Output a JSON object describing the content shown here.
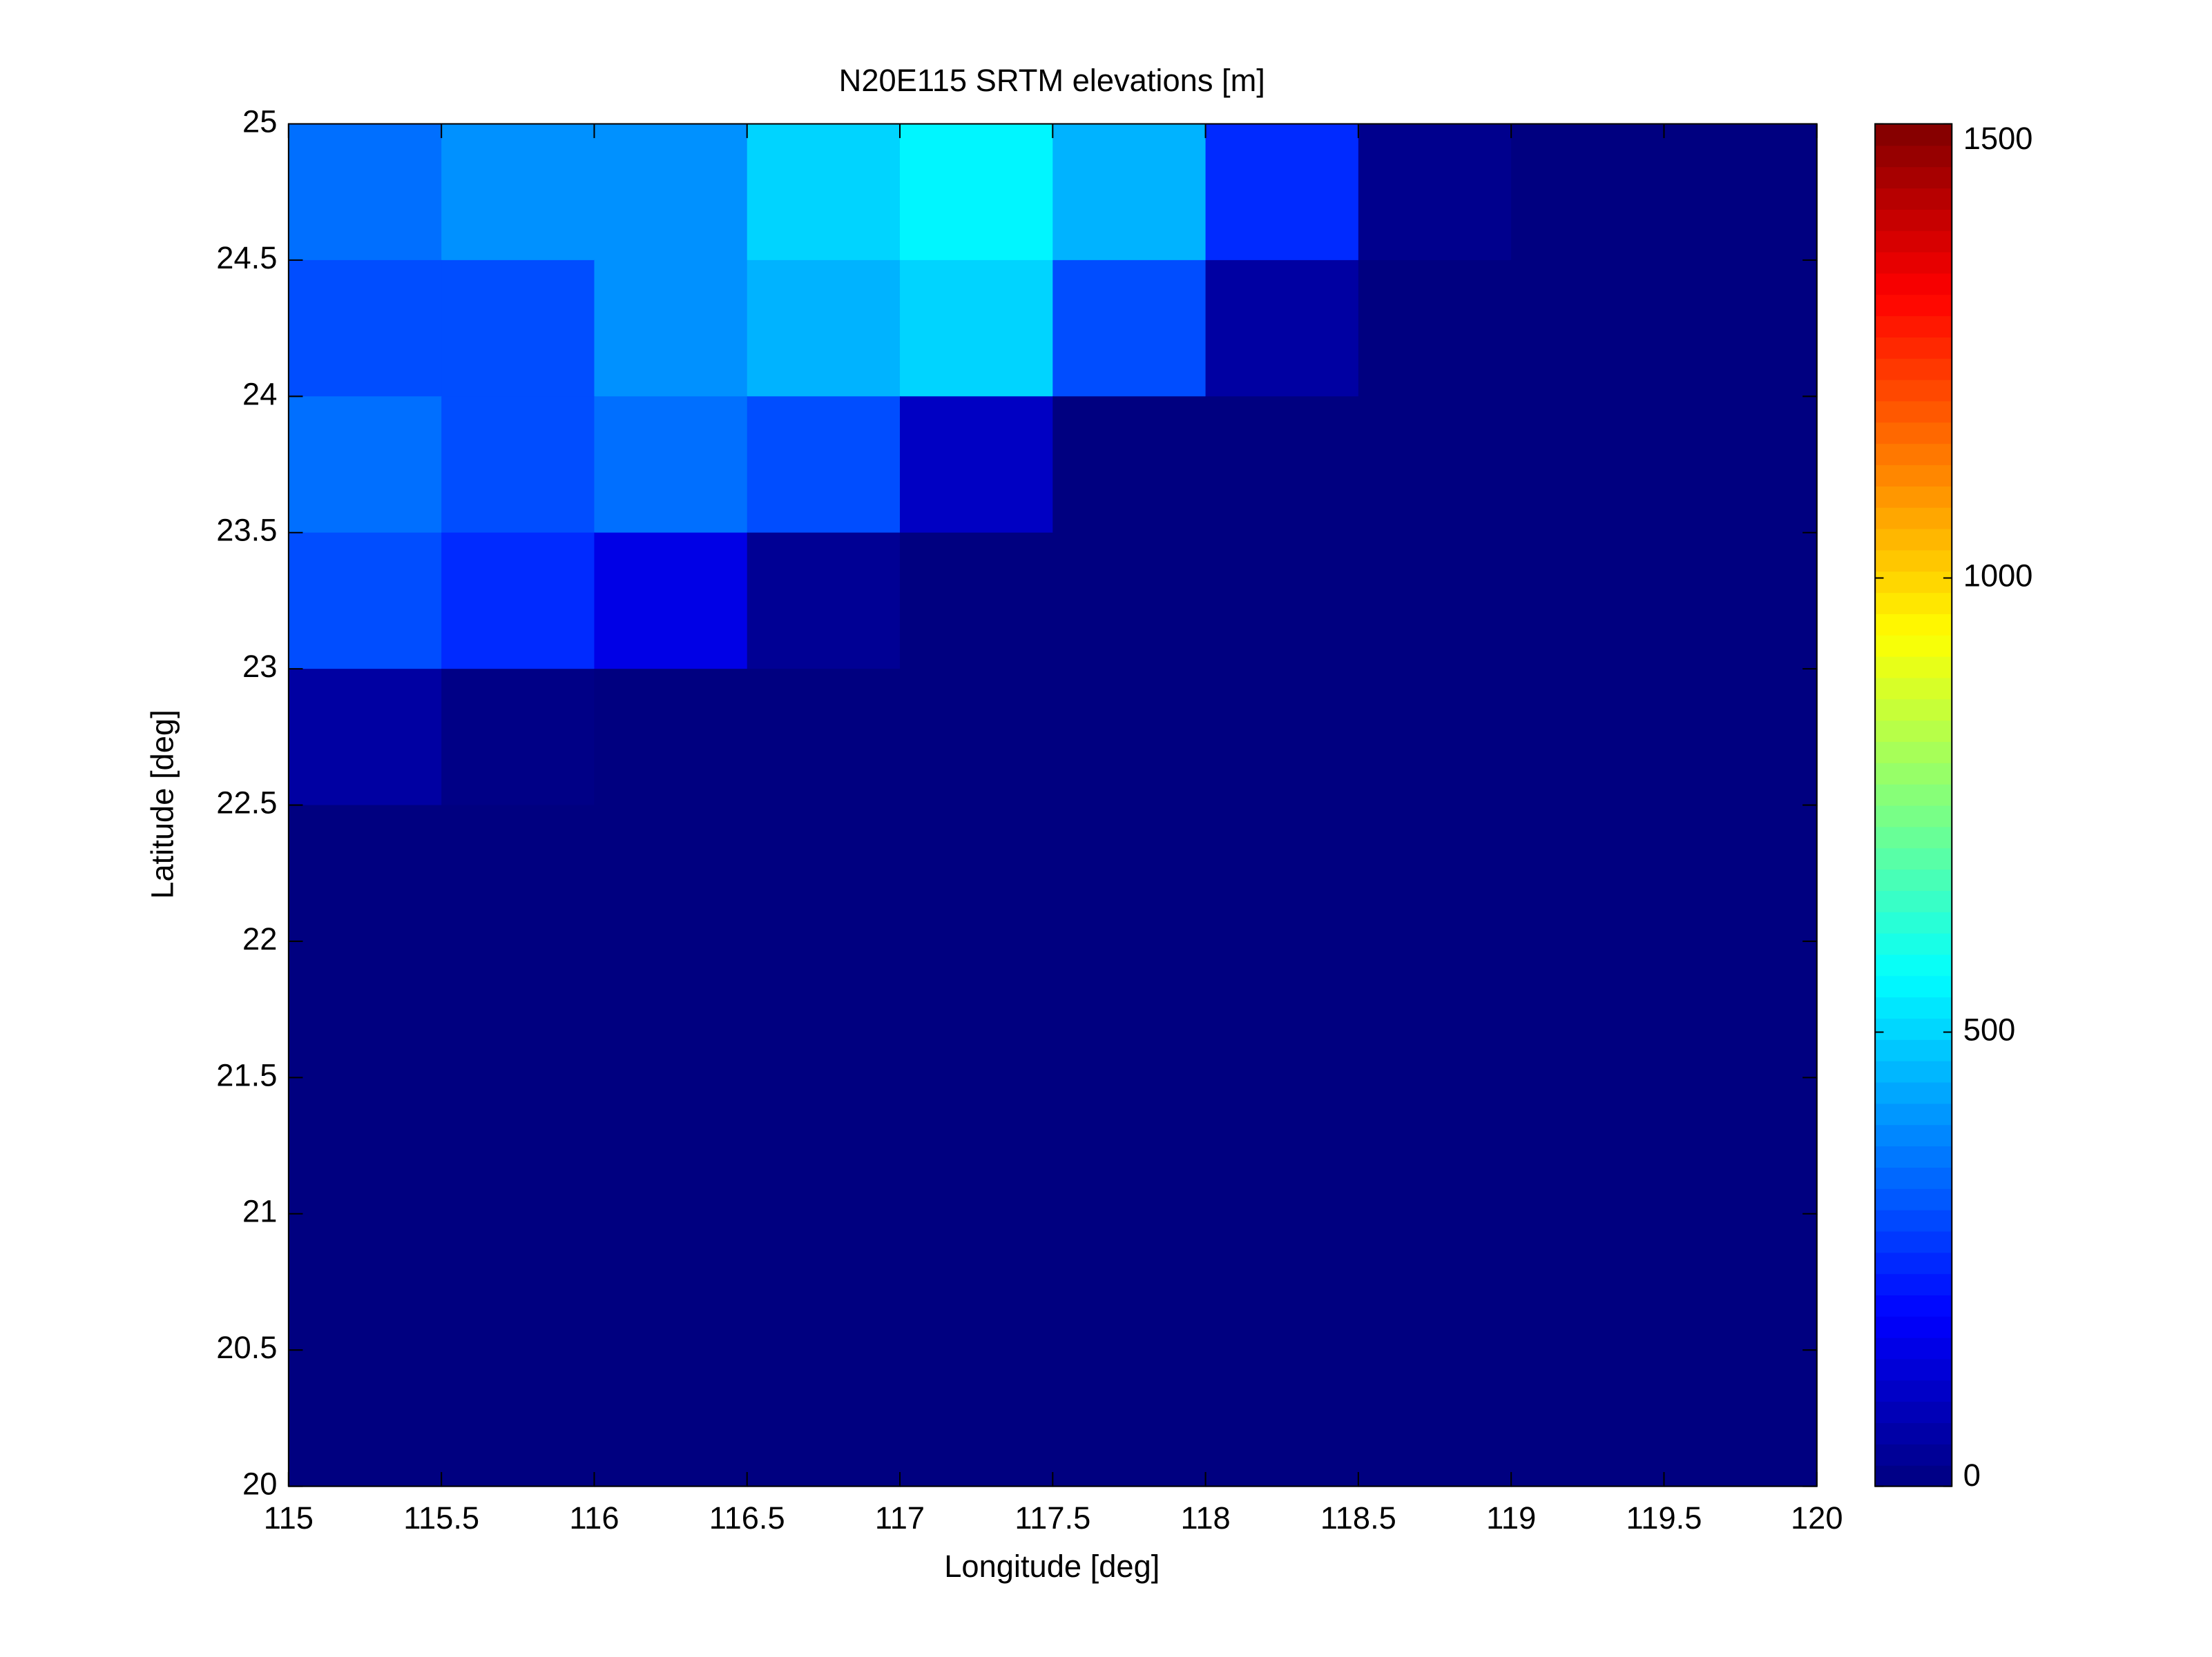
{
  "chart_data": {
    "type": "heatmap",
    "title": "N20E115 SRTM elevations [m]",
    "x_label": "Longitude [deg]",
    "y_label": "Latitude [deg]",
    "x": [
      115.25,
      115.75,
      116.25,
      116.75,
      117.25,
      117.75,
      118.25,
      118.75,
      119.25,
      119.75
    ],
    "y": [
      24.75,
      24.25,
      23.75,
      23.25,
      22.75,
      22.25,
      21.75,
      21.25,
      20.75,
      20.25
    ],
    "z": [
      [
        350,
        400,
        400,
        500,
        550,
        450,
        250,
        20,
        0,
        0
      ],
      [
        300,
        300,
        400,
        450,
        500,
        300,
        50,
        0,
        0,
        0
      ],
      [
        350,
        300,
        350,
        300,
        100,
        0,
        0,
        0,
        0,
        0
      ],
      [
        300,
        250,
        150,
        30,
        0,
        0,
        0,
        0,
        0,
        0
      ],
      [
        50,
        10,
        0,
        0,
        0,
        0,
        0,
        0,
        0,
        0
      ],
      [
        0,
        0,
        0,
        0,
        0,
        0,
        0,
        0,
        0,
        0
      ],
      [
        0,
        0,
        0,
        0,
        0,
        0,
        0,
        0,
        0,
        0
      ],
      [
        0,
        0,
        0,
        0,
        0,
        0,
        0,
        0,
        0,
        0
      ],
      [
        0,
        0,
        0,
        0,
        0,
        0,
        0,
        0,
        0,
        0
      ],
      [
        0,
        0,
        0,
        0,
        0,
        0,
        0,
        0,
        0,
        0
      ]
    ],
    "colormap": "jet",
    "clim": [
      0,
      1500
    ],
    "colorbar_ticks": [
      0,
      500,
      1000,
      1500
    ],
    "xlim": [
      115,
      120
    ],
    "xticks": [
      115,
      115.5,
      116,
      116.5,
      117,
      117.5,
      118,
      118.5,
      119,
      119.5,
      120
    ],
    "ylim": [
      20,
      25
    ],
    "yticks": [
      20,
      20.5,
      21,
      21.5,
      22,
      22.5,
      23,
      23.5,
      24,
      24.5,
      25
    ],
    "grid": false
  }
}
